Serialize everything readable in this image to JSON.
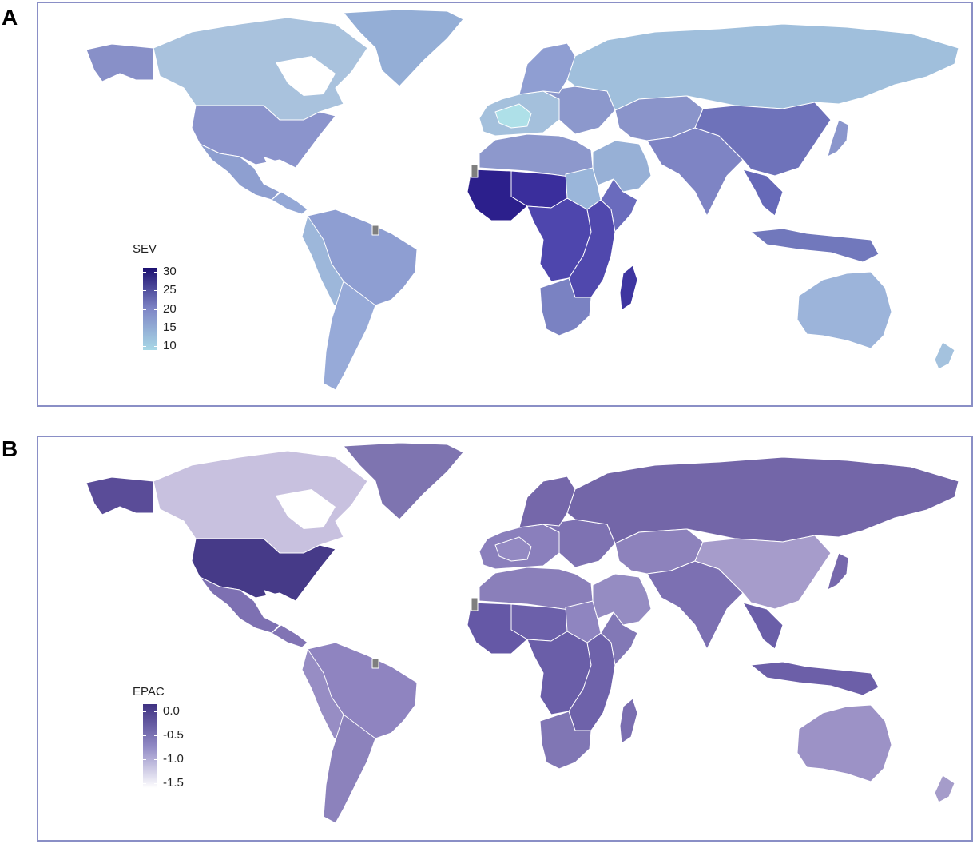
{
  "panels": [
    {
      "letter": "A",
      "legend": {
        "title": "SEV",
        "ticks": [
          "30",
          "25",
          "20",
          "15",
          "10"
        ],
        "tick_values": [
          30,
          25,
          20,
          15,
          10
        ],
        "range": [
          9,
          31
        ],
        "color_low": "#a8d8e6",
        "color_mid": "#7f86c6",
        "color_high": "#1c1070"
      },
      "fills": {
        "north_america": "#a9c2dd",
        "greenland": "#94aed6",
        "alaska": "#8890c8",
        "usa": "#8b94cc",
        "mexico": "#8e9fd0",
        "central_america": "#94a8d6",
        "south_america": "#8e9ed2",
        "south_america_west": "#9db7da",
        "south_america_south": "#97aad8",
        "europe": "#a4c0dc",
        "europe_west": "#aee0e8",
        "europe_east": "#8c98cc",
        "scandinavia": "#8f9ed2",
        "russia": "#a0bfdc",
        "north_africa": "#8d98cc",
        "sahel": "#3a2e9c",
        "west_africa": "#2c1f8c",
        "central_africa": "#4e46ad",
        "east_africa": "#5048ad",
        "horn_africa": "#6a6bbd",
        "southern_africa": "#7a82c2",
        "madagascar": "#3e35a0",
        "sudan": "#9ab6da",
        "middle_east": "#97b0d6",
        "central_asia": "#8a94ca",
        "south_asia": "#7e84c4",
        "china": "#6e72ba",
        "southeast_asia": "#6669b8",
        "japan": "#8a96cc",
        "indonesia": "#7178bc",
        "australia": "#9cb4da",
        "new_zealand": "#a4c2de",
        "missing": "#7f7f7f"
      }
    },
    {
      "letter": "B",
      "legend": {
        "title": "EPAC",
        "ticks": [
          "0.0",
          "-0.5",
          "-1.0",
          "-1.5"
        ],
        "tick_values": [
          0.0,
          -0.5,
          -1.0,
          -1.5
        ],
        "range": [
          -1.6,
          0.15
        ],
        "color_low": "#ffffff",
        "color_mid": "#9089c4",
        "color_high": "#3f3282"
      },
      "fills": {
        "north_america": "#c8c1df",
        "greenland": "#7e74b0",
        "alaska": "#5a4c98",
        "usa": "#463a88",
        "mexico": "#7d70b2",
        "central_america": "#8174b4",
        "south_america": "#8f84c0",
        "south_america_west": "#978dc4",
        "south_america_south": "#8c82bc",
        "europe": "#8a7fbc",
        "europe_west": "#9389c2",
        "europe_east": "#7e72b2",
        "scandinavia": "#7567aa",
        "russia": "#7366a8",
        "north_africa": "#8a7fba",
        "sahel": "#6c60aa",
        "west_africa": "#6558a6",
        "central_africa": "#6a5ea8",
        "east_africa": "#6e62aa",
        "horn_africa": "#8278b6",
        "southern_africa": "#8076b4",
        "madagascar": "#7a6eb0",
        "sudan": "#8f85c0",
        "middle_east": "#958cc2",
        "central_asia": "#8d82bc",
        "south_asia": "#7c70b2",
        "china": "#a69ccb",
        "southeast_asia": "#6a5ea8",
        "japan": "#7668ac",
        "indonesia": "#6c5fa8",
        "australia": "#9c92c6",
        "new_zealand": "#a59cca",
        "missing": "#7f7f7f"
      }
    }
  ]
}
